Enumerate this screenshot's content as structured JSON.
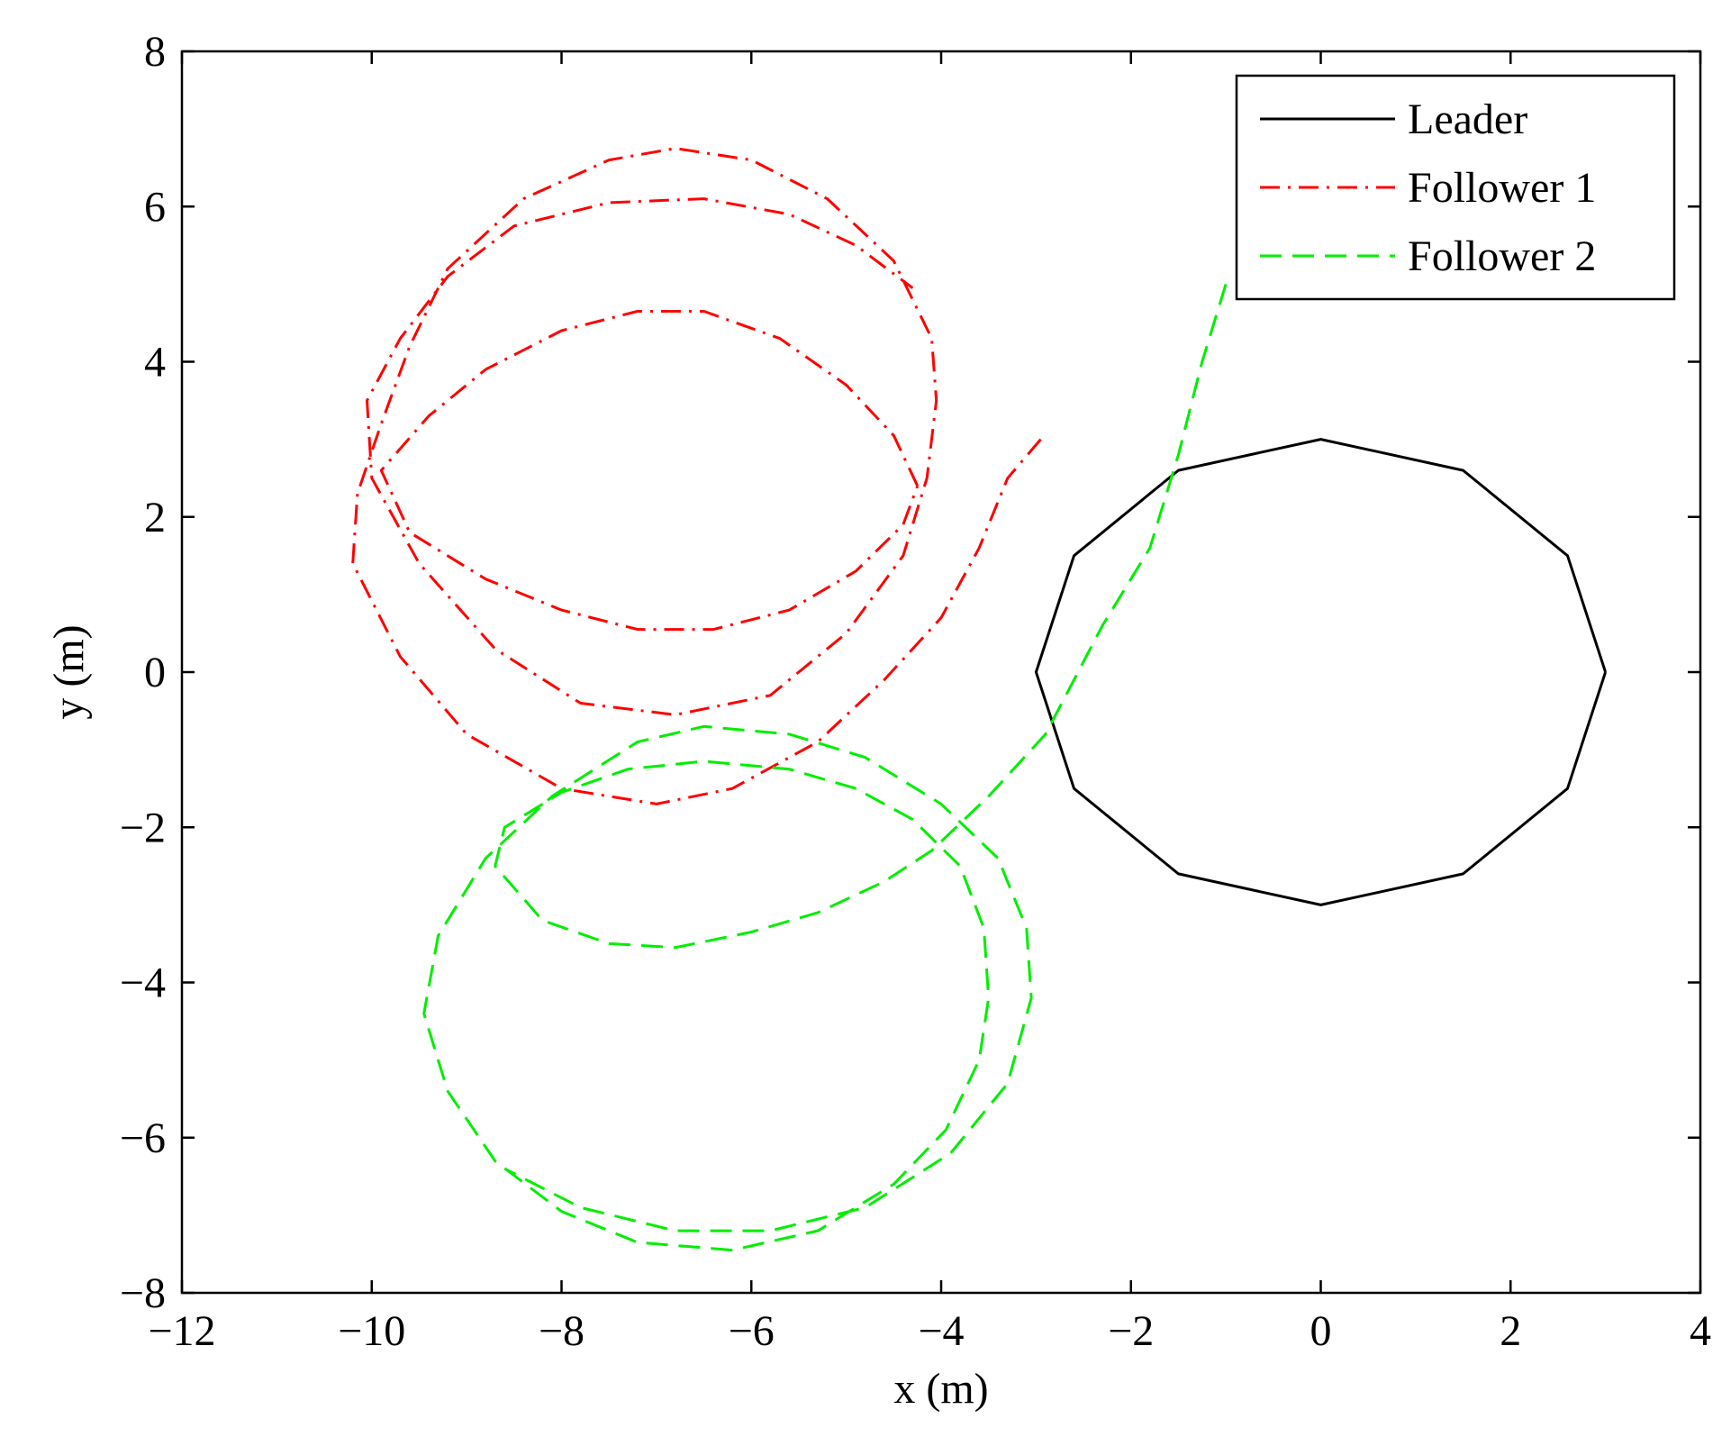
{
  "chart_data": {
    "type": "line",
    "title": "",
    "xlabel": "x (m)",
    "ylabel": "y (m)",
    "xlim": [
      -12,
      4
    ],
    "ylim": [
      -8,
      8
    ],
    "xticks": [
      -12,
      -10,
      -8,
      -6,
      -4,
      -2,
      0,
      2,
      4
    ],
    "yticks": [
      -8,
      -6,
      -4,
      -2,
      0,
      2,
      4,
      6,
      8
    ],
    "xtick_labels": [
      "−12",
      "−10",
      "−8",
      "−6",
      "−4",
      "−2",
      "0",
      "2",
      "4"
    ],
    "ytick_labels": [
      "−8",
      "−6",
      "−4",
      "−2",
      "0",
      "2",
      "4",
      "6",
      "8"
    ],
    "grid": false,
    "legend_position": "top-right",
    "series": [
      {
        "name": "Leader",
        "color": "#000000",
        "style": "solid",
        "points": [
          [
            3,
            0
          ],
          [
            2.6,
            1.5
          ],
          [
            1.5,
            2.6
          ],
          [
            0,
            3
          ],
          [
            -1.5,
            2.6
          ],
          [
            -2.6,
            1.5
          ],
          [
            -3,
            0
          ],
          [
            -2.6,
            -1.5
          ],
          [
            -1.5,
            -2.6
          ],
          [
            0,
            -3
          ],
          [
            1.5,
            -2.6
          ],
          [
            2.6,
            -1.5
          ],
          [
            3,
            0
          ]
        ]
      },
      {
        "name": "Follower 1",
        "color": "#ff0000",
        "style": "dashdot",
        "points": [
          [
            -2.95,
            3.0
          ],
          [
            -3.3,
            2.5
          ],
          [
            -3.6,
            1.6
          ],
          [
            -4.0,
            0.7
          ],
          [
            -4.6,
            -0.1
          ],
          [
            -5.3,
            -0.9
          ],
          [
            -6.2,
            -1.5
          ],
          [
            -7.0,
            -1.7
          ],
          [
            -8.0,
            -1.5
          ],
          [
            -9.0,
            -0.8
          ],
          [
            -9.7,
            0.2
          ],
          [
            -10.2,
            1.4
          ],
          [
            -10.15,
            2.3
          ],
          [
            -9.9,
            3.2
          ],
          [
            -9.6,
            4.2
          ],
          [
            -9.2,
            5.2
          ],
          [
            -8.4,
            6.1
          ],
          [
            -7.5,
            6.6
          ],
          [
            -6.8,
            6.75
          ],
          [
            -6.0,
            6.6
          ],
          [
            -5.2,
            6.1
          ],
          [
            -4.5,
            5.3
          ],
          [
            -4.1,
            4.3
          ],
          [
            -4.05,
            3.5
          ],
          [
            -4.15,
            2.5
          ],
          [
            -4.4,
            1.5
          ],
          [
            -5.0,
            0.5
          ],
          [
            -5.8,
            -0.3
          ],
          [
            -6.8,
            -0.55
          ],
          [
            -7.8,
            -0.4
          ],
          [
            -8.7,
            0.3
          ],
          [
            -9.5,
            1.4
          ],
          [
            -10.0,
            2.5
          ],
          [
            -10.05,
            3.5
          ],
          [
            -9.7,
            4.3
          ],
          [
            -9.2,
            5.1
          ],
          [
            -8.5,
            5.75
          ],
          [
            -7.5,
            6.05
          ],
          [
            -6.5,
            6.1
          ],
          [
            -5.6,
            5.9
          ],
          [
            -4.9,
            5.5
          ],
          [
            -4.3,
            4.95
          ]
        ]
      },
      {
        "name": "",
        "color": "#ff0000",
        "style": "dashdot",
        "points": [
          [
            -4.25,
            2.4
          ],
          [
            -4.5,
            3.05
          ],
          [
            -5.0,
            3.7
          ],
          [
            -5.7,
            4.3
          ],
          [
            -6.5,
            4.65
          ],
          [
            -7.2,
            4.65
          ],
          [
            -8.0,
            4.4
          ],
          [
            -8.8,
            3.9
          ],
          [
            -9.4,
            3.3
          ],
          [
            -9.9,
            2.6
          ],
          [
            -9.6,
            1.8
          ],
          [
            -8.8,
            1.2
          ],
          [
            -8.0,
            0.8
          ],
          [
            -7.2,
            0.55
          ],
          [
            -6.4,
            0.55
          ],
          [
            -5.6,
            0.8
          ],
          [
            -4.9,
            1.3
          ],
          [
            -4.4,
            1.9
          ],
          [
            -4.25,
            2.4
          ]
        ]
      },
      {
        "name": "Follower 2",
        "color": "#00ee00",
        "style": "dashed",
        "points": [
          [
            -1.0,
            5.0
          ],
          [
            -1.25,
            4.0
          ],
          [
            -1.5,
            2.8
          ],
          [
            -1.8,
            1.6
          ],
          [
            -2.3,
            0.6
          ],
          [
            -2.9,
            -0.8
          ],
          [
            -3.5,
            -1.6
          ],
          [
            -4.1,
            -2.3
          ],
          [
            -4.6,
            -2.7
          ],
          [
            -5.3,
            -3.1
          ],
          [
            -6.0,
            -3.35
          ],
          [
            -6.8,
            -3.55
          ],
          [
            -7.5,
            -3.5
          ],
          [
            -8.2,
            -3.2
          ],
          [
            -8.7,
            -2.5
          ],
          [
            -8.6,
            -2.0
          ],
          [
            -8.0,
            -1.55
          ],
          [
            -7.3,
            -1.25
          ],
          [
            -6.5,
            -1.15
          ],
          [
            -5.6,
            -1.25
          ],
          [
            -4.9,
            -1.5
          ],
          [
            -4.3,
            -1.9
          ],
          [
            -3.8,
            -2.5
          ],
          [
            -3.55,
            -3.3
          ],
          [
            -3.5,
            -4.2
          ],
          [
            -3.6,
            -5.0
          ],
          [
            -3.95,
            -5.9
          ],
          [
            -4.5,
            -6.6
          ],
          [
            -5.3,
            -7.2
          ],
          [
            -6.2,
            -7.45
          ],
          [
            -7.2,
            -7.35
          ],
          [
            -8.0,
            -6.95
          ],
          [
            -8.7,
            -6.3
          ],
          [
            -9.2,
            -5.4
          ],
          [
            -9.45,
            -4.4
          ],
          [
            -9.3,
            -3.4
          ],
          [
            -8.8,
            -2.4
          ],
          [
            -8.1,
            -1.6
          ],
          [
            -7.2,
            -0.9
          ],
          [
            -6.5,
            -0.7
          ],
          [
            -5.6,
            -0.8
          ],
          [
            -4.8,
            -1.1
          ],
          [
            -4.0,
            -1.7
          ],
          [
            -3.4,
            -2.4
          ],
          [
            -3.1,
            -3.3
          ],
          [
            -3.05,
            -4.2
          ],
          [
            -3.3,
            -5.3
          ],
          [
            -3.9,
            -6.2
          ],
          [
            -4.8,
            -6.9
          ],
          [
            -5.8,
            -7.2
          ],
          [
            -6.8,
            -7.2
          ],
          [
            -7.8,
            -6.9
          ],
          [
            -8.6,
            -6.4
          ]
        ]
      }
    ]
  }
}
